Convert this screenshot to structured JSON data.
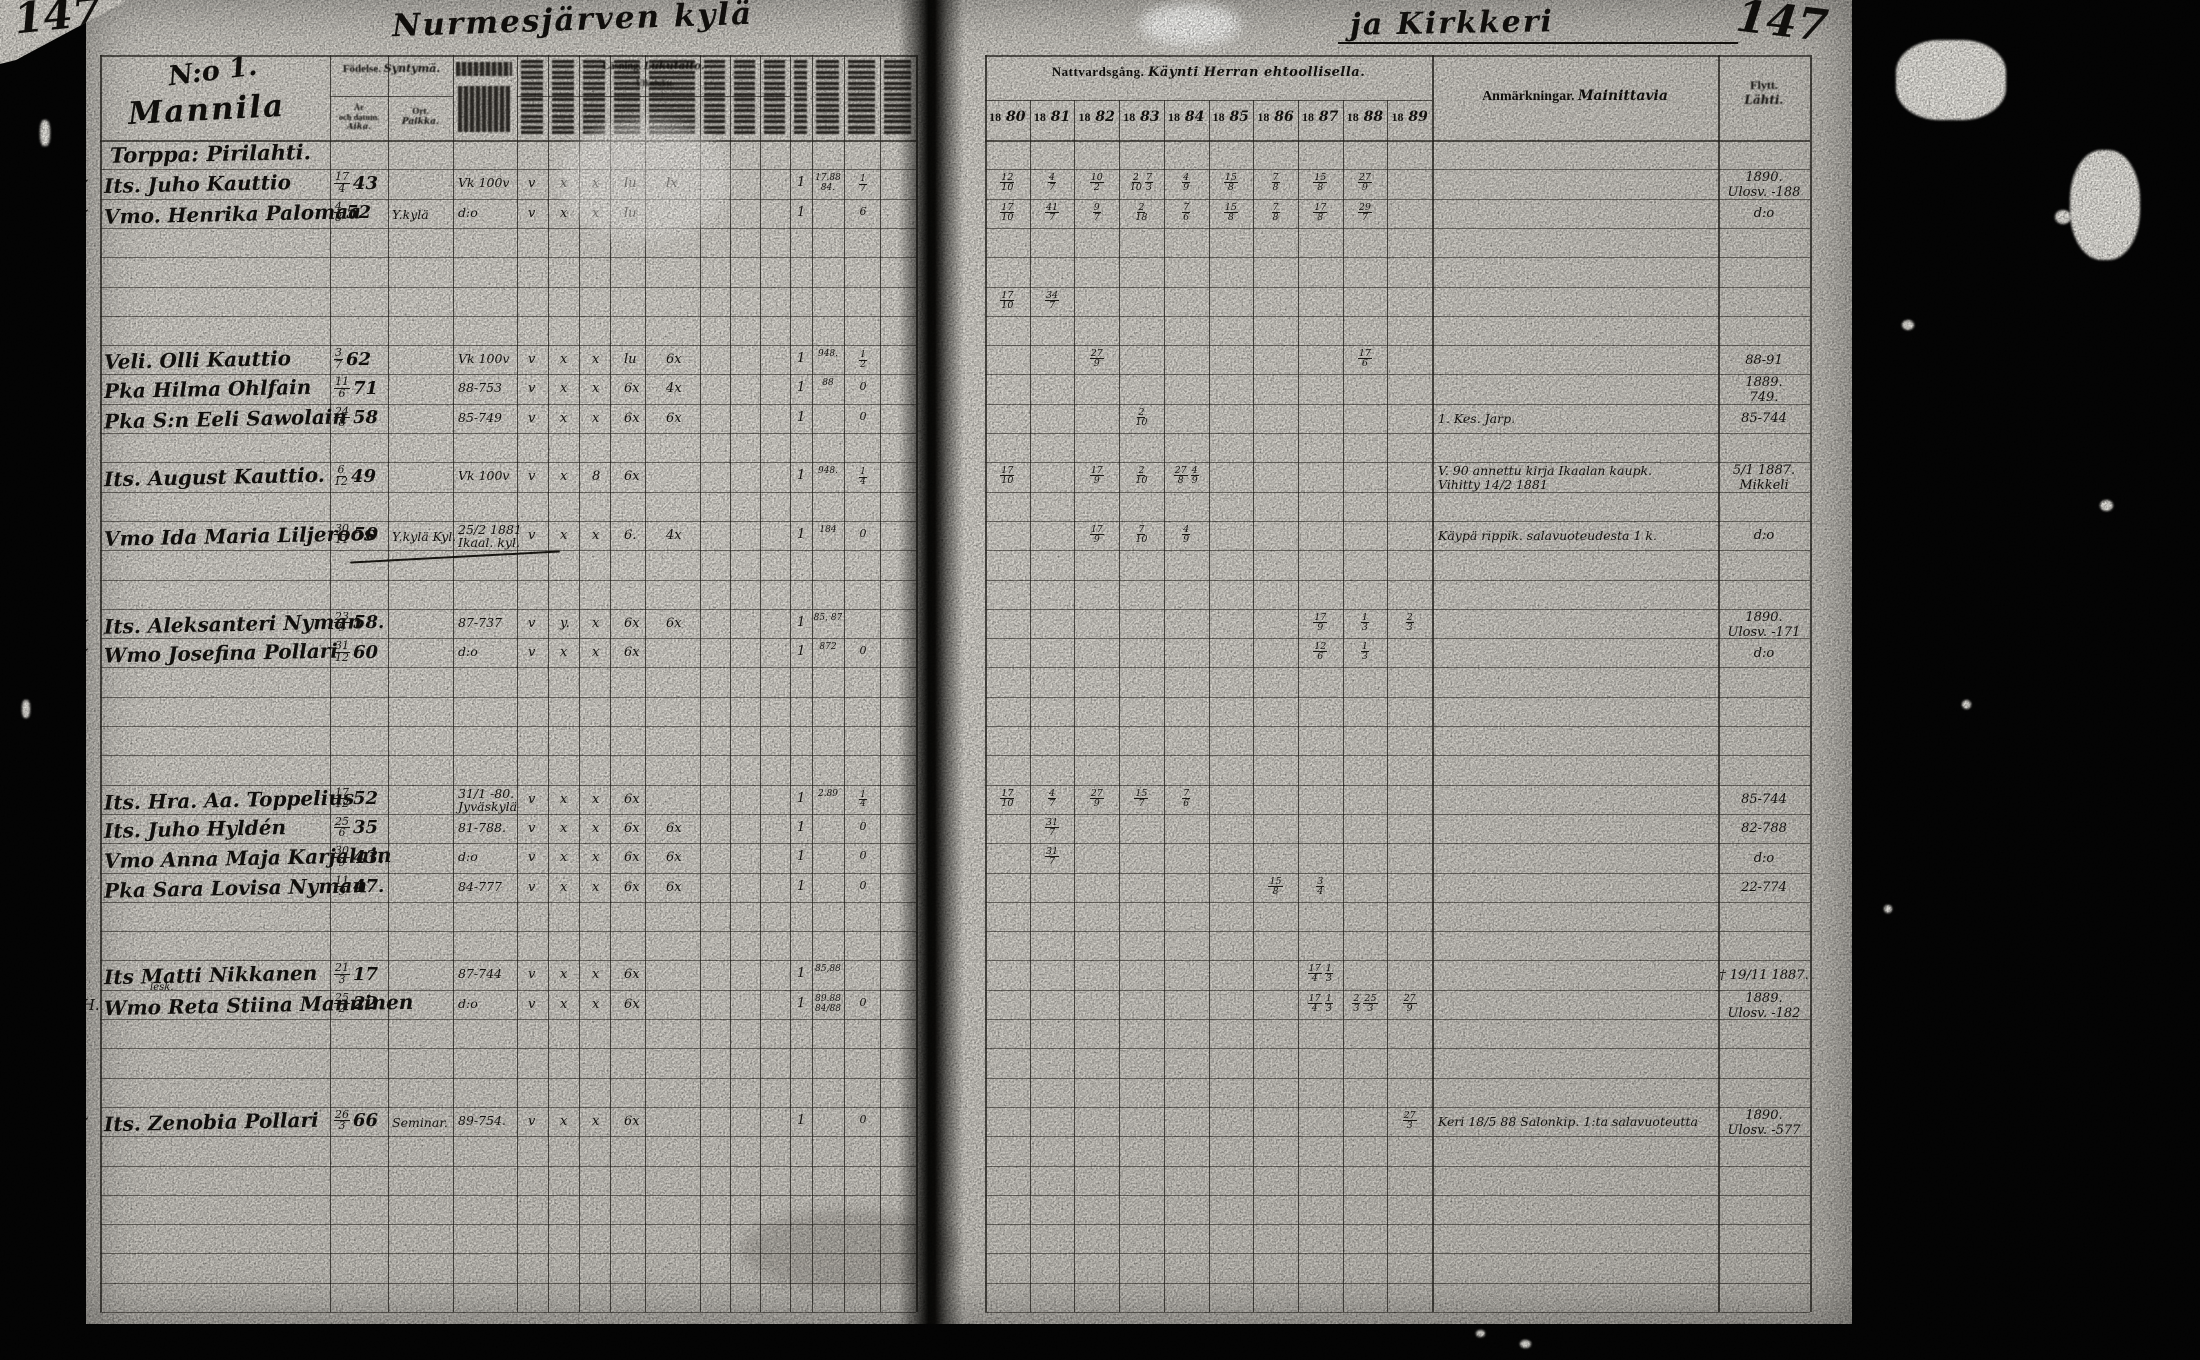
{
  "page": {
    "number_left": "147",
    "number_right": "147",
    "title_left_script": "Nurmesjärven kylä",
    "title_right_script": "ja Kirkkeri",
    "section_no": "N:o 1.",
    "section_name": "Mannila"
  },
  "left_header": {
    "birth_group_sv": "Födelse.",
    "birth_group_fi": "Syntymä.",
    "birth_date_line1": "År",
    "birth_date_line2": "och datum.",
    "birth_date_line3": "Aika.",
    "birth_place_sv": "Ort.",
    "birth_place_fi": "Paikka.",
    "reading_group_sv": "Läsning.",
    "reading_group_fi": "Lukutaito.",
    "reading_sub": "Ulkoluku."
  },
  "right_header": {
    "communion_sv": "Nattvardsgång.",
    "communion_fi": "Käynti Herran ehtoollisella.",
    "years": [
      "1880",
      "1881",
      "1882",
      "1883",
      "1884",
      "1885",
      "1886",
      "1887",
      "1888",
      "1889"
    ],
    "remarks_sv": "Anmärkningar.",
    "remarks_fi": "Mainittavia",
    "moved_sv": "Flytt.",
    "moved_fi": "Lähti."
  },
  "rows": [
    {
      "kind": "group",
      "i": 0,
      "text": "Torppa: Pirilahti."
    },
    {
      "kind": "person",
      "i": 1,
      "mark": "✓",
      "name": "Its. Juho Kauttio",
      "b": [
        "17",
        "4",
        "43"
      ],
      "book": [
        "Vk 100v"
      ],
      "c": [
        "v",
        "x",
        "x",
        "lu",
        "lx"
      ],
      "t1": "1",
      "n1": [
        "17.88",
        "84."
      ],
      "n2": "1/7",
      "comm": {
        "0": [
          "12/10"
        ],
        "1": [
          "4/7"
        ],
        "2": [
          "10/2"
        ],
        "3": [
          "2/10",
          "7/3"
        ],
        "4": [
          "4/9"
        ],
        "5": [
          "15/8"
        ],
        "6": [
          "7/8"
        ],
        "7": [
          "15/8"
        ],
        "8": [
          "27/9"
        ]
      },
      "fly": [
        "1890.",
        "Ulosv. -188"
      ]
    },
    {
      "kind": "person",
      "i": 2,
      "mark": "✓",
      "name": "Vmo. Henrika Palomaa",
      "b": [
        "4",
        "8",
        "52"
      ],
      "place": "Y.kylä",
      "book": [
        "d:o"
      ],
      "c": [
        "v",
        "x",
        "x",
        "lu",
        ""
      ],
      "t1": "1",
      "n2": "6",
      "comm": {
        "0": [
          "17/10"
        ],
        "1": [
          "41/7"
        ],
        "2": [
          "9/7"
        ],
        "3": [
          "2/18"
        ],
        "4": [
          "7/6"
        ],
        "5": [
          "15/8"
        ],
        "6": [
          "7/8"
        ],
        "7": [
          "17/8"
        ],
        "8": [
          "29/7"
        ]
      },
      "fly": [
        "d:o"
      ]
    },
    {
      "kind": "person",
      "i": 5,
      "comm": {
        "0": [
          "17/10"
        ],
        "1": [
          "34/7"
        ]
      }
    },
    {
      "kind": "person",
      "i": 7,
      "name": "Veli. Olli Kauttio",
      "b": [
        "3",
        "7",
        "62"
      ],
      "book": [
        "Vk 100v"
      ],
      "c": [
        "v",
        "x",
        "x",
        "lu",
        "6x"
      ],
      "t1": "1",
      "n1": [
        "948."
      ],
      "n2": "1/2",
      "comm": {
        "2": [
          "27/9"
        ],
        "8": [
          "17/6"
        ]
      },
      "fly": [
        "88-91"
      ]
    },
    {
      "kind": "person",
      "i": 8,
      "name": "Pka Hilma Ohlfain",
      "b": [
        "11",
        "6",
        "71"
      ],
      "book": [
        "88-753"
      ],
      "c": [
        "v",
        "x",
        "x",
        "6x",
        "4x"
      ],
      "t1": "1",
      "n1": [
        "88"
      ],
      "n2": "0",
      "fly": [
        "1889.",
        "749."
      ]
    },
    {
      "kind": "person",
      "i": 9,
      "name": "Pka S:n Eeli Sawolain",
      "b": [
        "24",
        "8",
        "58"
      ],
      "book": [
        "85-749"
      ],
      "c": [
        "v",
        "x",
        "x",
        "6x",
        "6x"
      ],
      "t1": "1",
      "n2": "0",
      "comm": {
        "3": [
          "2/10"
        ]
      },
      "rem": [
        "1. Kes. Jarp."
      ],
      "fly": [
        "85-744"
      ]
    },
    {
      "kind": "person",
      "i": 11,
      "name": "Its. August Kauttio.",
      "b": [
        "6",
        "12",
        "49"
      ],
      "book": [
        "Vk 100v"
      ],
      "c": [
        "v",
        "x",
        "8",
        "6x",
        ""
      ],
      "t1": "1",
      "n1": [
        "948."
      ],
      "n2": "1/4",
      "comm": {
        "0": [
          "17/10"
        ],
        "2": [
          "17/9"
        ],
        "3": [
          "2/10"
        ],
        "4": [
          "27/8",
          "4/9"
        ]
      },
      "rem": [
        "V. 90 annettu kirja Ikaalan kaupk.",
        "Vihitty 14/2 1881"
      ],
      "fly": [
        "5/1 1887.",
        "Mikkeli"
      ]
    },
    {
      "kind": "person",
      "i": 13,
      "name": "Vmo Ida Maria Liljeroos",
      "b": [
        "30",
        "11",
        "50"
      ],
      "place": "Y.kylä Kyl.",
      "book": [
        "25/2 1881",
        "Ikaal. kyl."
      ],
      "c": [
        "v",
        "x",
        "x",
        "6.",
        "4x"
      ],
      "t1": "1",
      "n1": [
        "184"
      ],
      "n2": "0",
      "comm": {
        "2": [
          "17/9"
        ],
        "3": [
          "7/10"
        ],
        "4": [
          "4/9"
        ]
      },
      "rem": [
        "Käypä rippik. salavuoteudesta 1 k."
      ],
      "fly": [
        "d:o"
      ]
    },
    {
      "kind": "person",
      "i": 16,
      "mark": "✓",
      "name": "Its. Aleksanteri Nyman",
      "b": [
        "23",
        "9",
        "58."
      ],
      "book": [
        "87-737"
      ],
      "c": [
        "v",
        "y.",
        "x",
        "6x",
        "6x"
      ],
      "t1": "1",
      "n1": [
        "85, 87"
      ],
      "comm": {
        "7": [
          "17/9"
        ],
        "8": [
          "1/3"
        ],
        "9": [
          "2/3"
        ]
      },
      "fly": [
        "1890.",
        "Ulosv. -171"
      ]
    },
    {
      "kind": "person",
      "i": 17,
      "mark": "✓",
      "name": "Wmo Josefina Pollari",
      "b": [
        "31",
        "12",
        "60"
      ],
      "book": [
        "d:o"
      ],
      "c": [
        "v",
        "x",
        "x",
        "6x",
        ""
      ],
      "t1": "1",
      "n1": [
        "872"
      ],
      "n2": "0",
      "comm": {
        "7": [
          "12/6"
        ],
        "8": [
          "1/3"
        ]
      },
      "fly": [
        "d:o"
      ]
    },
    {
      "kind": "person",
      "i": 22,
      "name": "Its. Hra. Aa. Toppelius",
      "b": [
        "17",
        "12",
        "52"
      ],
      "book": [
        "31/1 -80.",
        "Jyväskylä"
      ],
      "c": [
        "v",
        "x",
        "x",
        "6x",
        ""
      ],
      "t1": "1",
      "n1": [
        "2.89"
      ],
      "n2": "1/4",
      "comm": {
        "0": [
          "17/10"
        ],
        "1": [
          "4/7"
        ],
        "2": [
          "27/9"
        ],
        "3": [
          "15/7"
        ],
        "4": [
          "7/6"
        ]
      },
      "fly": [
        "85-744"
      ]
    },
    {
      "kind": "person",
      "i": 23,
      "name": "Its. Juho Hyldén",
      "b": [
        "25",
        "6",
        "35"
      ],
      "book": [
        "81-788."
      ],
      "c": [
        "v",
        "x",
        "x",
        "6x",
        "6x"
      ],
      "t1": "1",
      "n2": "0",
      "comm": {
        "1": [
          "31/7"
        ]
      },
      "fly": [
        "82-788"
      ]
    },
    {
      "kind": "person",
      "i": 24,
      "name": "Vmo Anna Maja Karjalain",
      "b": [
        "30",
        "9",
        "43."
      ],
      "book": [
        "d:o"
      ],
      "c": [
        "v",
        "x",
        "x",
        "6x",
        "6x"
      ],
      "t1": "1",
      "n2": "0",
      "comm": {
        "1": [
          "31/7"
        ]
      },
      "fly": [
        "d:o"
      ]
    },
    {
      "kind": "person",
      "i": 25,
      "name": "Pka Sara Lovisa Nyman",
      "b": [
        "11",
        "9",
        "47."
      ],
      "book": [
        "84-777"
      ],
      "c": [
        "v",
        "x",
        "x",
        "6x",
        "6x"
      ],
      "t1": "1",
      "n2": "0",
      "comm": {
        "6": [
          "15/8"
        ],
        "7": [
          "3/4"
        ]
      },
      "fly": [
        "22-774"
      ]
    },
    {
      "kind": "person",
      "i": 28,
      "name": "Its Matti Nikkanen",
      "b": [
        "21",
        "3",
        "17"
      ],
      "book": [
        "87-744"
      ],
      "c": [
        "v",
        "x",
        "x",
        "6x",
        ""
      ],
      "t1": "1",
      "n1": [
        "85,88"
      ],
      "comm": {
        "7": [
          "17/4",
          "1/3"
        ]
      },
      "fly": [
        "† 19/11 1887."
      ]
    },
    {
      "kind": "person",
      "i": 29,
      "mark": "(H.",
      "name": "Wmo Reta Stiina Manninen",
      "sup": "lesk.",
      "b": [
        "25",
        "2",
        "22."
      ],
      "book": [
        "d:o"
      ],
      "c": [
        "v",
        "x",
        "x",
        "6x",
        ""
      ],
      "t1": "1",
      "n1": [
        "89.88",
        "84/88"
      ],
      "n2": "0",
      "comm": {
        "7": [
          "17/4",
          "1/3"
        ],
        "8": [
          "2/3",
          "25/3"
        ],
        "9": [
          "27/9"
        ]
      },
      "fly": [
        "1889.",
        "Ulosv. -182"
      ]
    },
    {
      "kind": "person",
      "i": 33,
      "mark": "✓",
      "name": "Its. Zenobia Pollari",
      "b": [
        "26",
        "3",
        "66"
      ],
      "place": "Seminar.",
      "book": [
        "89-754."
      ],
      "c": [
        "v",
        "x",
        "x",
        "6x",
        ""
      ],
      "t1": "1",
      "n2": "0",
      "comm": {
        "9": [
          "27/3"
        ]
      },
      "rem": [
        "Keri 18/5 88 Salonkip. 1:ta salavuoteutta"
      ],
      "fly": [
        "1890.",
        "Ulosv. -577"
      ]
    }
  ]
}
